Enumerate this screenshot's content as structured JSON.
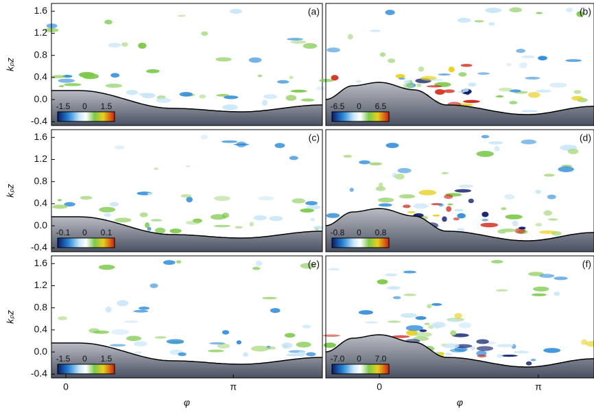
{
  "chart_data": [
    {
      "type": "field",
      "label": "(a)",
      "ylabel": "kₚz",
      "ylim": [
        -0.47,
        1.74
      ],
      "yticks": [
        -0.4,
        {
          "value": 0,
          "label": "0.0"
        },
        0.4,
        0.8,
        1.2,
        1.6
      ],
      "clim": [
        -1.5,
        1.5
      ],
      "cticks": [
        -1.5,
        0,
        1.5
      ]
    },
    {
      "type": "field",
      "label": "(b)",
      "clim": [
        -6.5,
        6.5
      ],
      "cticks": [
        -6.5,
        0,
        6.5
      ]
    },
    {
      "type": "field",
      "label": "(c)",
      "ylabel": "kₚz",
      "ylim": [
        -0.47,
        1.74
      ],
      "yticks": [
        -0.4,
        {
          "value": 0,
          "label": "0.0"
        },
        0.4,
        0.8,
        1.2,
        1.6
      ],
      "clim": [
        -0.1,
        0.1
      ],
      "cticks": [
        -0.1,
        0,
        0.1
      ]
    },
    {
      "type": "field",
      "label": "(d)",
      "clim": [
        -0.8,
        0.8
      ],
      "cticks": [
        -0.8,
        0,
        0.8
      ]
    },
    {
      "type": "field",
      "label": "(e)",
      "ylabel": "kₚz",
      "ylim": [
        -0.47,
        1.74
      ],
      "yticks": [
        -0.4,
        {
          "value": 0,
          "label": "0.0"
        },
        0.4,
        0.8,
        1.2,
        1.6
      ],
      "clim": [
        -1.5,
        1.5
      ],
      "cticks": [
        -1.5,
        0,
        1.5
      ],
      "xlabel": "φ",
      "xlim": [
        -0.27,
        4.81
      ],
      "xticks": [
        0,
        {
          "value": 3.14159,
          "label": "π"
        }
      ]
    },
    {
      "type": "field",
      "label": "(f)",
      "clim": [
        -7.0,
        7.0
      ],
      "cticks": [
        {
          "value": -7.0,
          "label": "-7.0"
        },
        0,
        {
          "value": 7.0,
          "label": "7.0"
        }
      ],
      "xlabel": "φ",
      "xlim": [
        -1.06,
        4.24
      ],
      "xticks": [
        0,
        {
          "value": 3.14159,
          "label": "π"
        }
      ]
    }
  ]
}
